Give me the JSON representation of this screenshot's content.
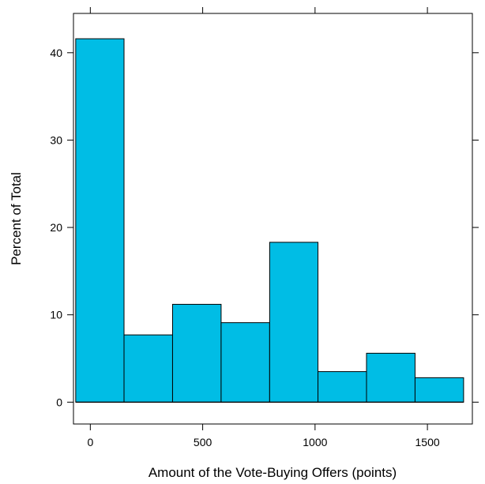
{
  "chart_data": {
    "type": "bar",
    "xlabel": "Amount of the Vote-Buying Offers (points)",
    "ylabel": "Percent of Total",
    "xlim": [
      -75,
      1700
    ],
    "ylim": [
      -2.5,
      44.5
    ],
    "x_ticks": [
      0,
      500,
      1000,
      1500
    ],
    "y_ticks": [
      0,
      10,
      20,
      30,
      40
    ],
    "bins": [
      {
        "start": -65,
        "end": 150,
        "value": 41.6
      },
      {
        "start": 150,
        "end": 366,
        "value": 7.7
      },
      {
        "start": 366,
        "end": 582,
        "value": 11.2
      },
      {
        "start": 582,
        "end": 798,
        "value": 9.1
      },
      {
        "start": 798,
        "end": 1013,
        "value": 18.3
      },
      {
        "start": 1013,
        "end": 1229,
        "value": 3.5
      },
      {
        "start": 1229,
        "end": 1445,
        "value": 5.6
      },
      {
        "start": 1445,
        "end": 1661,
        "value": 2.8
      }
    ],
    "bar_color": "#00bde5",
    "grid": false
  }
}
